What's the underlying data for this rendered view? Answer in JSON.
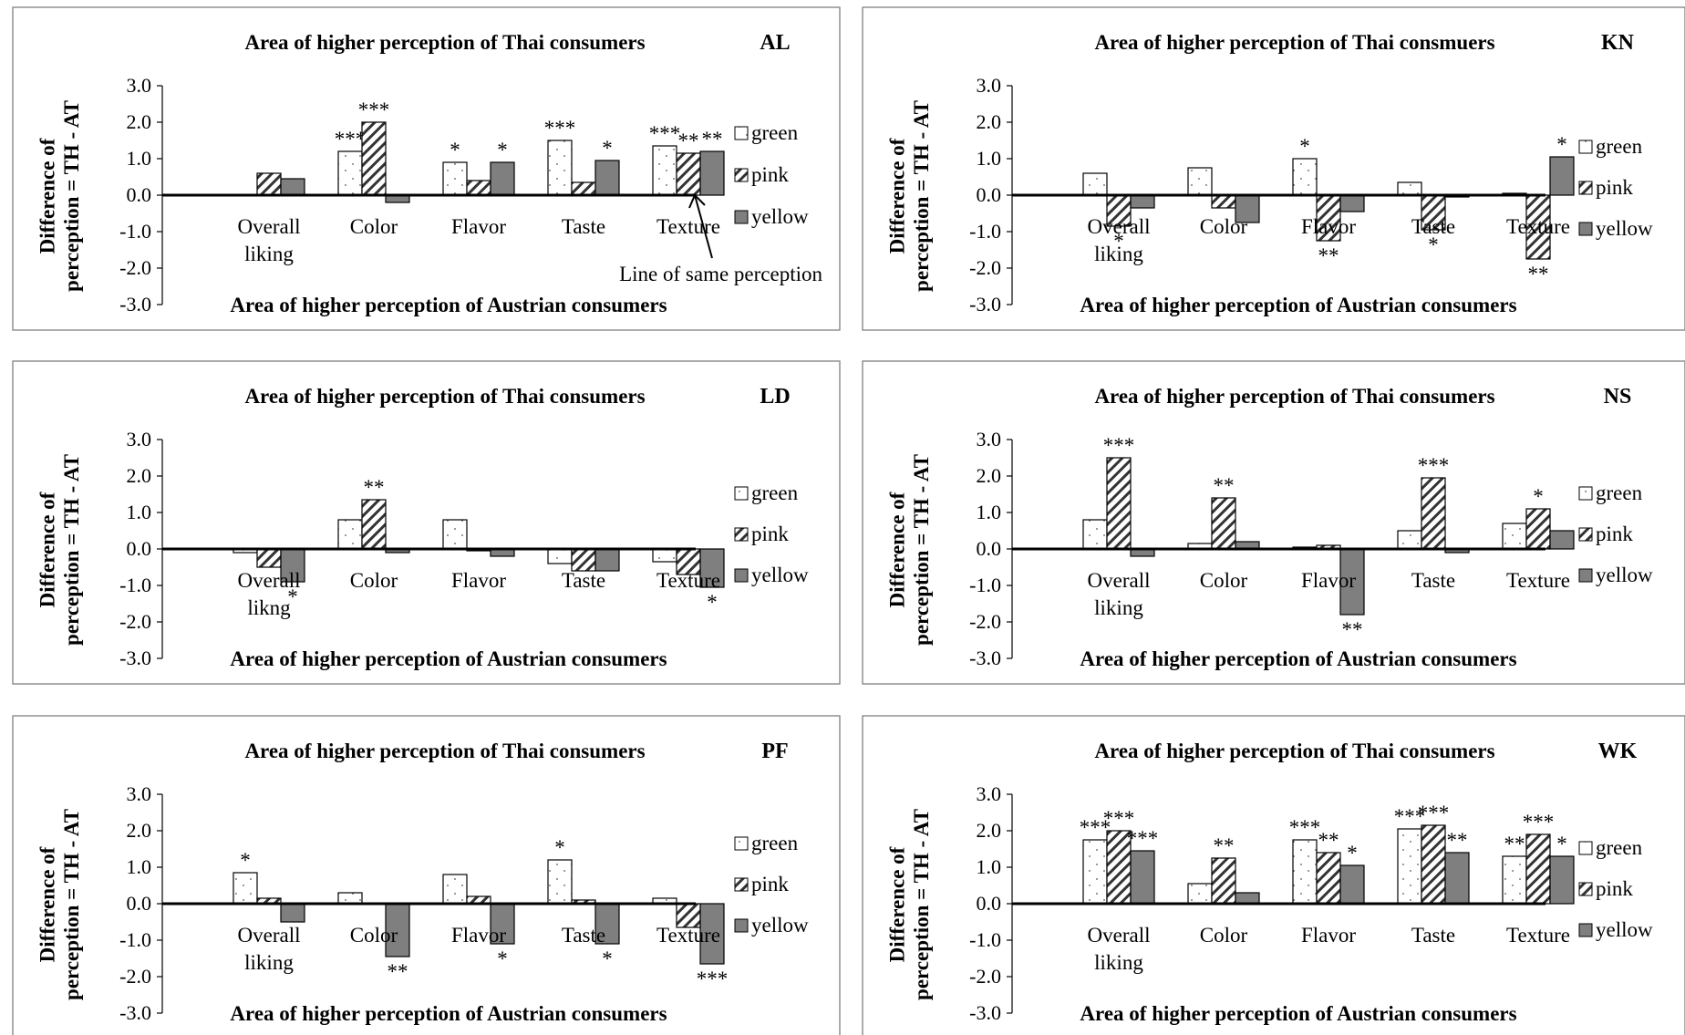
{
  "legend": [
    {
      "key": "green",
      "label": "green",
      "fill": "url(#pat-green)"
    },
    {
      "key": "pink",
      "label": "pink",
      "fill": "url(#pat-pink)"
    },
    {
      "key": "yellow",
      "label": "yellow",
      "fill": "#7f7f7f"
    }
  ],
  "annotation": "Line of same perception",
  "chart_data": [
    {
      "type": "bar",
      "code": "AL",
      "title_top": "Area of higher perception of Thai consumers",
      "title_bottom": "Area of higher perception of Austrian consumers",
      "ylabel_1": "Difference of",
      "ylabel_2": "perception = TH - AT",
      "ylim": [
        -3,
        3
      ],
      "yticks": [
        "3.0",
        "2.0",
        "1.0",
        "0.0",
        "-1.0",
        "-2.0",
        "-3.0"
      ],
      "categories": [
        [
          "Overall",
          "liking"
        ],
        [
          "Color"
        ],
        [
          "Flavor"
        ],
        [
          "Taste"
        ],
        [
          "Texture"
        ]
      ],
      "series": [
        {
          "name": "green",
          "values": [
            0.0,
            1.2,
            0.9,
            1.5,
            1.35
          ],
          "sig": [
            "",
            "***",
            "*",
            "***",
            "***"
          ]
        },
        {
          "name": "pink",
          "values": [
            0.6,
            2.0,
            0.4,
            0.35,
            1.15
          ],
          "sig": [
            "",
            "***",
            "",
            "",
            "**"
          ]
        },
        {
          "name": "yellow",
          "values": [
            0.45,
            -0.2,
            0.9,
            0.95,
            1.2
          ],
          "sig": [
            "",
            "",
            "*",
            "*",
            "**"
          ]
        }
      ]
    },
    {
      "type": "bar",
      "code": "KN",
      "title_top": "Area of  higher perception of Thai consmuers",
      "title_bottom": "Area of higher perception of Austrian consumers",
      "ylabel_1": "Difference of",
      "ylabel_2": "perception = TH - AT",
      "ylim": [
        -3,
        3
      ],
      "yticks": [
        "3.0",
        "2.0",
        "1.0",
        "0.0",
        "-1.0",
        "-2.0",
        "-3.0"
      ],
      "categories": [
        [
          "Overall",
          "liking"
        ],
        [
          "Color"
        ],
        [
          "Flavor"
        ],
        [
          "Taste"
        ],
        [
          "Texture"
        ]
      ],
      "series": [
        {
          "name": "green",
          "values": [
            0.6,
            0.75,
            1.0,
            0.35,
            0.05
          ],
          "sig": [
            "",
            "",
            "*",
            "",
            ""
          ]
        },
        {
          "name": "pink",
          "values": [
            -0.85,
            -0.35,
            -1.25,
            -0.95,
            -1.75
          ],
          "sig": [
            "*",
            "",
            "**",
            "*",
            "**"
          ]
        },
        {
          "name": "yellow",
          "values": [
            -0.35,
            -0.75,
            -0.45,
            -0.05,
            1.05
          ],
          "sig": [
            "",
            "",
            "",
            "",
            "*"
          ]
        }
      ]
    },
    {
      "type": "bar",
      "code": "LD",
      "title_top": "Area of higher perception of Thai consumers",
      "title_bottom": "Area of higher perception of Austrian consumers",
      "ylabel_1": "Difference of",
      "ylabel_2": "perception = TH - AT",
      "ylim": [
        -3,
        3
      ],
      "yticks": [
        "3.0",
        "2.0",
        "1.0",
        "0.0",
        "-1.0",
        "-2.0",
        "-3.0"
      ],
      "categories": [
        [
          "Overall",
          "likng"
        ],
        [
          "Color"
        ],
        [
          "Flavor"
        ],
        [
          "Taste"
        ],
        [
          "Texture"
        ]
      ],
      "series": [
        {
          "name": "green",
          "values": [
            -0.1,
            0.8,
            0.8,
            -0.4,
            -0.35
          ],
          "sig": [
            "",
            "",
            "",
            "",
            ""
          ]
        },
        {
          "name": "pink",
          "values": [
            -0.5,
            1.35,
            -0.05,
            -0.6,
            -0.7
          ],
          "sig": [
            "",
            "**",
            "",
            "",
            ""
          ]
        },
        {
          "name": "yellow",
          "values": [
            -0.9,
            -0.1,
            -0.2,
            -0.6,
            -1.05
          ],
          "sig": [
            "*",
            "",
            "",
            "",
            "*"
          ]
        }
      ]
    },
    {
      "type": "bar",
      "code": "NS",
      "title_top": "Area of higher perception of Thai consumers",
      "title_bottom": "Area of higher perception of Austrian consumers",
      "ylabel_1": "Difference of",
      "ylabel_2": "perception = TH - AT",
      "ylim": [
        -3,
        3
      ],
      "yticks": [
        "3.0",
        "2.0",
        "1.0",
        "0.0",
        "-1.0",
        "-2.0",
        "-3.0"
      ],
      "categories": [
        [
          "Overall",
          "liking"
        ],
        [
          "Color"
        ],
        [
          "Flavor"
        ],
        [
          "Taste"
        ],
        [
          "Texture"
        ]
      ],
      "series": [
        {
          "name": "green",
          "values": [
            0.8,
            0.15,
            0.05,
            0.5,
            0.7
          ],
          "sig": [
            "",
            "",
            "",
            "",
            ""
          ]
        },
        {
          "name": "pink",
          "values": [
            2.5,
            1.4,
            0.1,
            1.95,
            1.1
          ],
          "sig": [
            "***",
            "**",
            "",
            "***",
            "*"
          ]
        },
        {
          "name": "yellow",
          "values": [
            -0.2,
            0.2,
            -1.8,
            -0.1,
            0.5
          ],
          "sig": [
            "",
            "",
            "**",
            "",
            ""
          ]
        }
      ]
    },
    {
      "type": "bar",
      "code": "PF",
      "title_top": "Area of higher perception of Thai consumers",
      "title_bottom": "Area of higher perception of Austrian consumers",
      "ylabel_1": "Difference of",
      "ylabel_2": "perception = TH - AT",
      "ylim": [
        -3,
        3
      ],
      "yticks": [
        "3.0",
        "2.0",
        "1.0",
        "0.0",
        "-1.0",
        "-2.0",
        "-3.0"
      ],
      "categories": [
        [
          "Overall",
          "liking"
        ],
        [
          "Color"
        ],
        [
          "Flavor"
        ],
        [
          "Taste"
        ],
        [
          "Texture"
        ]
      ],
      "series": [
        {
          "name": "green",
          "values": [
            0.85,
            0.3,
            0.8,
            1.2,
            0.15
          ],
          "sig": [
            "*",
            "",
            "",
            "*",
            ""
          ]
        },
        {
          "name": "pink",
          "values": [
            0.15,
            0.0,
            0.2,
            0.1,
            -0.65
          ],
          "sig": [
            "",
            "",
            "",
            "",
            ""
          ]
        },
        {
          "name": "yellow",
          "values": [
            -0.5,
            -1.45,
            -1.1,
            -1.1,
            -1.65
          ],
          "sig": [
            "",
            "**",
            "*",
            "*",
            "***"
          ]
        }
      ]
    },
    {
      "type": "bar",
      "code": "WK",
      "title_top": "Area of higher perception of Thai consumers",
      "title_bottom": "Area of higher perception of Austrian consumers",
      "ylabel_1": "Difference of",
      "ylabel_2": "perception = TH - AT",
      "ylim": [
        -3,
        3
      ],
      "yticks": [
        "3.0",
        "2.0",
        "1.0",
        "0.0",
        "-1.0",
        "-2.0",
        "-3.0"
      ],
      "categories": [
        [
          "Overall",
          "liking"
        ],
        [
          "Color"
        ],
        [
          "Flavor"
        ],
        [
          "Taste"
        ],
        [
          "Texture"
        ]
      ],
      "series": [
        {
          "name": "green",
          "values": [
            1.75,
            0.55,
            1.75,
            2.05,
            1.3
          ],
          "sig": [
            "***",
            "",
            "***",
            "***",
            "**"
          ]
        },
        {
          "name": "pink",
          "values": [
            2.0,
            1.25,
            1.4,
            2.15,
            1.9
          ],
          "sig": [
            "***",
            "**",
            "**",
            "***",
            "***"
          ]
        },
        {
          "name": "yellow",
          "values": [
            1.45,
            0.3,
            1.05,
            1.4,
            1.3
          ],
          "sig": [
            "***",
            "",
            "*",
            "**",
            "*"
          ]
        }
      ]
    }
  ]
}
